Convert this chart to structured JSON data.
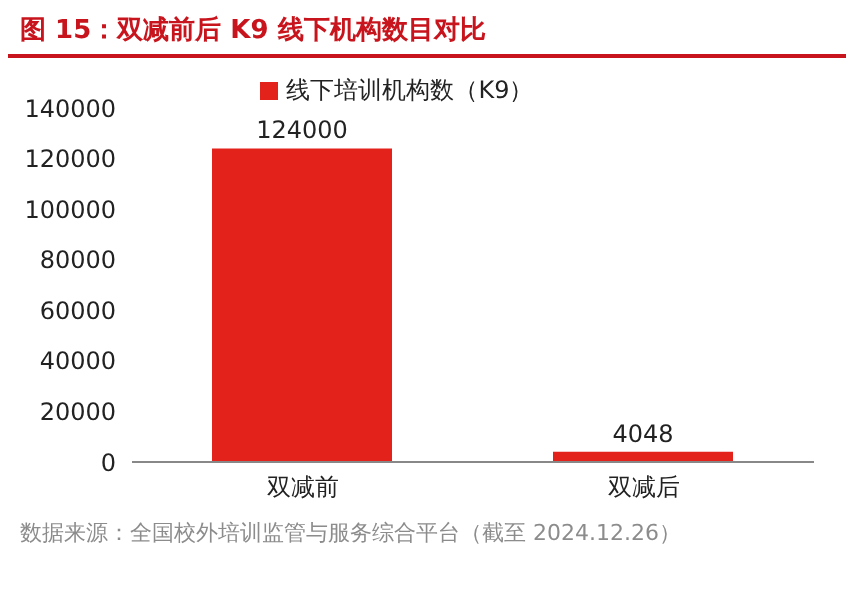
{
  "chart_data": {
    "type": "bar",
    "title": "图 15：双减前后 K9 线下机构数目对比",
    "categories": [
      "双减前",
      "双减后"
    ],
    "series": [
      {
        "name": "线下培训机构数（K9）",
        "color": "#e3231b",
        "values": [
          124000,
          4048
        ]
      }
    ],
    "ylim": [
      0,
      140000
    ],
    "yticks": [
      0,
      20000,
      40000,
      60000,
      80000,
      100000,
      120000,
      140000
    ],
    "data_labels": true,
    "legend": "top",
    "grid": false,
    "annotations": [
      "数据来源：全国校外培训监管与服务综合平台（截至 2024.12.26）"
    ]
  }
}
